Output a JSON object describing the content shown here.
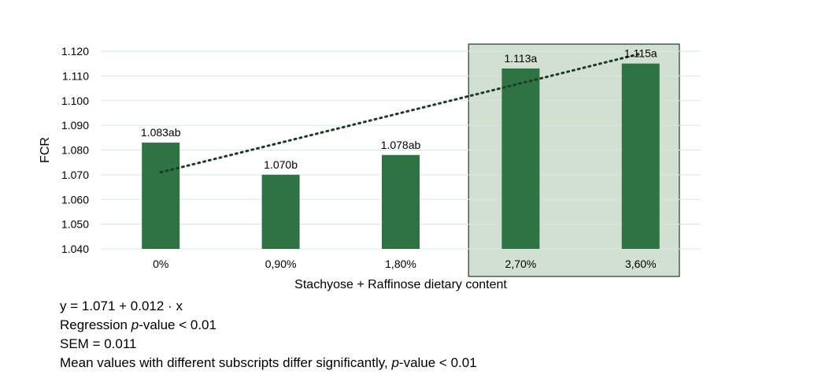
{
  "chart_data": {
    "type": "bar",
    "ylabel": "FCR",
    "xlabel": "Stachyose + Raffinose dietary content",
    "categories": [
      "0%",
      "0,90%",
      "1,80%",
      "2,70%",
      "3,60%"
    ],
    "values": [
      1.083,
      1.07,
      1.078,
      1.113,
      1.115
    ],
    "bar_labels": [
      "1.083ab",
      "1.070b",
      "1.078ab",
      "1.113a",
      "1.115a"
    ],
    "ylim": [
      1.04,
      1.12
    ],
    "yticks": [
      "1.040",
      "1.050",
      "1.060",
      "1.070",
      "1.080",
      "1.090",
      "1.100",
      "1.110",
      "1.120"
    ],
    "grid": true,
    "bar_color": "#2f7244",
    "highlight": {
      "categories": [
        "2,70%",
        "3,60%"
      ],
      "fill": "#d2e0d2",
      "stroke": "#1f3a26"
    },
    "trendline": {
      "intercept": 1.071,
      "slope": 0.012,
      "style": "dotted",
      "color": "#1f3a26"
    }
  },
  "notes": {
    "equation": "y = 1.071 + 0.012 · x",
    "regression_prefix": "Regression ",
    "regression_p": "p",
    "regression_suffix": "-value < 0.01",
    "sem": "SEM = 0.011",
    "means_prefix": "Mean values with different subscripts differ significantly, ",
    "means_p": "p",
    "means_suffix": "-value < 0.01"
  }
}
